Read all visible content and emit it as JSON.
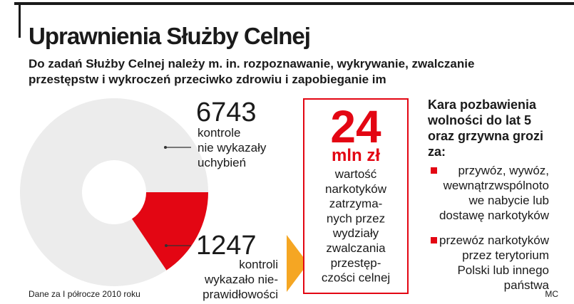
{
  "chart_data": {
    "type": "pie",
    "title": "Uprawnienia Służby Celnej",
    "subtitle": [
      "Do zadań Służby Celnej należy m. in. rozpoznawanie, wykrywanie, zwalczanie",
      "przestępstw i wykroczeń przeciwko zdrowiu i zapobieganie im"
    ],
    "values": [
      6743,
      1247
    ],
    "labels": [
      [
        "kontrole",
        "nie wykazały",
        "uchybień"
      ],
      [
        "kontroli",
        "wykazało nie-",
        "prawidłowości"
      ]
    ],
    "colors": [
      "#ececec",
      "#e30613"
    ],
    "inner_radius_ratio_hidden": null,
    "source": "Dane za I półrocze 2010 roku"
  },
  "highlight": {
    "value": 24,
    "unit": "mln zł",
    "description": [
      "wartość",
      "narkotyków",
      "zatrzyma-",
      "nych przez",
      "wydziały",
      "zwalczania",
      "przestęp-",
      "czości celnej"
    ]
  },
  "penalty": {
    "heading": [
      "Kara pozbawienia",
      "wolności do lat 5",
      "oraz grzywna grozi",
      "za:"
    ],
    "items": [
      [
        "przywóz, wywóz,",
        "wewnątrzwspólnoto",
        "we nabycie lub",
        "dostawę narkotyków"
      ],
      [
        "przewóz narkotyków",
        "przez terytorium",
        "Polski lub innego",
        "państwa"
      ]
    ]
  },
  "credit": "MC"
}
